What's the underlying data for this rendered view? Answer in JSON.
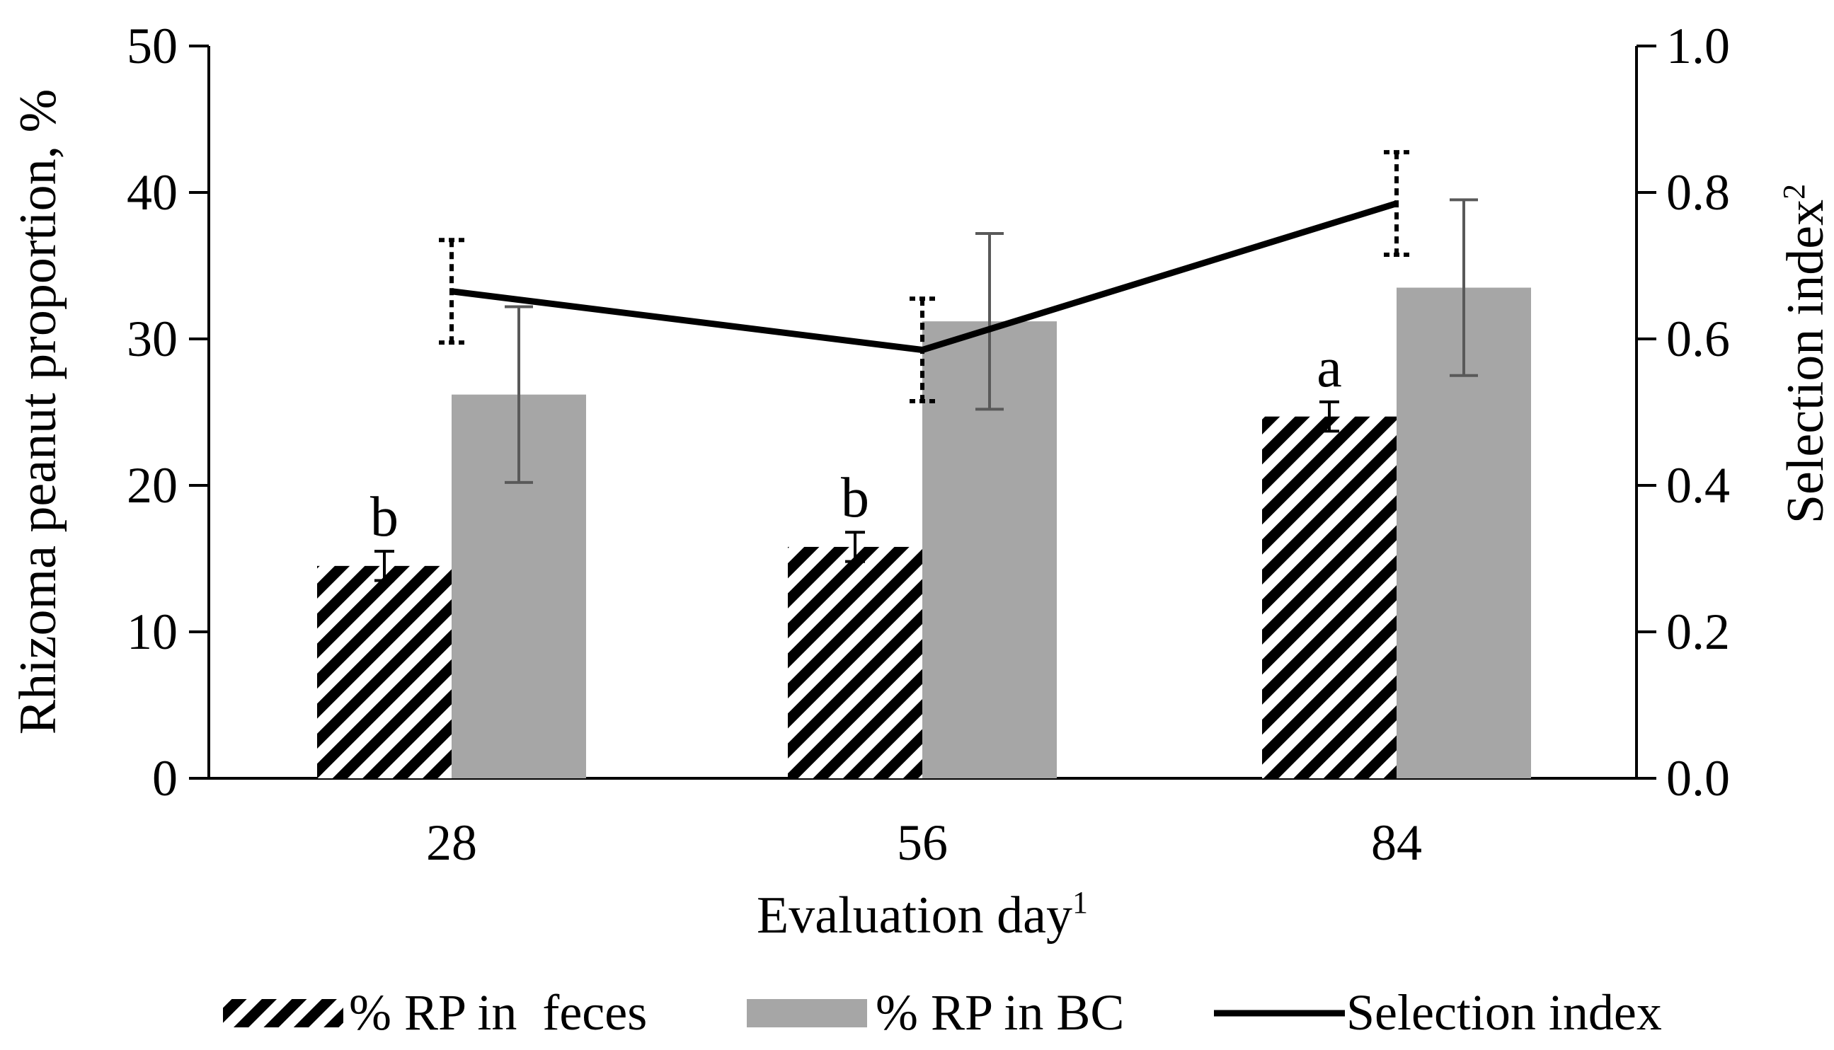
{
  "chart_data": {
    "type": "bar",
    "title": "",
    "xlabel": "Evaluation day",
    "xlabel_sup": "1",
    "ylabel": "Rhizoma peanut proportion, %",
    "y2label": "Selection index",
    "y2label_sup": "2",
    "ylim": [
      0,
      50
    ],
    "y2lim": [
      0,
      1.0
    ],
    "yticks": [
      "0",
      "10",
      "20",
      "30",
      "40",
      "50"
    ],
    "y2ticks": [
      "0.0",
      "0.2",
      "0.4",
      "0.6",
      "0.8",
      "1.0"
    ],
    "categories": [
      "28",
      "56",
      "84"
    ],
    "series": [
      {
        "name": "% RP in  feces",
        "kind": "bar",
        "pattern": "hatch",
        "values": [
          14.5,
          15.8,
          24.7
        ],
        "errors": [
          1.0,
          1.0,
          1.0
        ],
        "labels": [
          "b",
          "b",
          "a"
        ]
      },
      {
        "name": "% RP in BC",
        "kind": "bar",
        "color": "#a6a6a6",
        "values": [
          26.2,
          31.2,
          33.5
        ],
        "errors": [
          6.0,
          6.0,
          6.0
        ]
      },
      {
        "name": "Selection index",
        "kind": "line",
        "axis": "right",
        "color": "#000000",
        "values": [
          0.665,
          0.585,
          0.785
        ],
        "errors": [
          0.07,
          0.07,
          0.07
        ]
      }
    ],
    "legend_position": "bottom"
  }
}
